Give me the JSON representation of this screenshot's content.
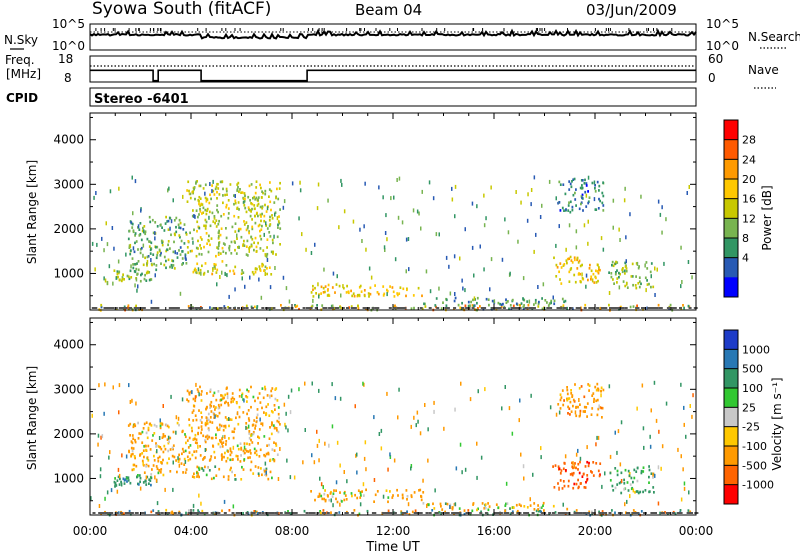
{
  "header": {
    "title": "Syowa South (fitACF)",
    "beam": "Beam 04",
    "date": "03/Jun/2009"
  },
  "top_panels": {
    "nsky": {
      "label": "N.Sky",
      "ticks": [
        "10^5",
        "10^0"
      ],
      "right_ticks": [
        "10^5",
        "10^0"
      ],
      "right_label": "N.Search"
    },
    "freq": {
      "label_line1": "Freq.",
      "label_line2": "[MHz]",
      "ticks": [
        "18",
        "8"
      ],
      "right_ticks": [
        "60",
        "0"
      ],
      "right_label": "Nave"
    },
    "cpid": {
      "label": "CPID",
      "value": "Stereo -6401"
    }
  },
  "power_panel": {
    "ylabel": "Slant Range [km]",
    "yticks": [
      "4000",
      "3000",
      "2000",
      "1000"
    ],
    "colorbar": {
      "label": "Power [dB]",
      "ticks": [
        "28",
        "24",
        "20",
        "16",
        "12",
        "8",
        "4"
      ],
      "colors": [
        "#ff0000",
        "#ff5a00",
        "#ff9a00",
        "#ffc800",
        "#c8c800",
        "#78b450",
        "#329664",
        "#285ab4",
        "#0000ff"
      ]
    }
  },
  "velocity_panel": {
    "ylabel": "Slant Range [km]",
    "yticks": [
      "4000",
      "3000",
      "2000",
      "1000"
    ],
    "colorbar": {
      "label": "Velocity [m s⁻¹]",
      "ticks": [
        "1000",
        "500",
        "100",
        "25",
        "-25",
        "-100",
        "-500",
        "-1000"
      ],
      "colors": [
        "#1e3cc8",
        "#2878b4",
        "#329664",
        "#32c832",
        "#c8c8c8",
        "#ffc800",
        "#ff9a00",
        "#ff6400",
        "#ff0000"
      ]
    }
  },
  "xaxis": {
    "label": "Time UT",
    "ticks": [
      "00:00",
      "04:00",
      "08:00",
      "12:00",
      "16:00",
      "20:00",
      "00:00"
    ]
  },
  "chart_data": {
    "type": "heatmap",
    "title": "Syowa South (fitACF)",
    "subtitle": "Beam 04",
    "date": "03/Jun/2009",
    "xlabel": "Time UT",
    "ylabel": "Slant Range [km]",
    "xlim_hours": [
      0,
      24
    ],
    "ylim_km": [
      180,
      4600
    ],
    "freq_mhz_segments": [
      {
        "start_h": 0.0,
        "end_h": 2.5,
        "value": 12.5
      },
      {
        "start_h": 2.5,
        "end_h": 2.7,
        "value": 8.5
      },
      {
        "start_h": 2.7,
        "end_h": 4.4,
        "value": 12.5
      },
      {
        "start_h": 4.4,
        "end_h": 8.6,
        "value": 8.5
      },
      {
        "start_h": 8.6,
        "end_h": 24.0,
        "value": 12.5
      }
    ],
    "nsky_level": "near 10^5 throughout",
    "scatter_regions": [
      {
        "t0": 0.3,
        "t1": 24.0,
        "r0": 200,
        "r1": 320,
        "power": "mixed",
        "velocity": "mixed"
      },
      {
        "t0": 0.9,
        "t1": 2.4,
        "r0": 850,
        "r1": 1100,
        "power": 12,
        "velocity": 300
      },
      {
        "t0": 1.5,
        "t1": 3.8,
        "r0": 1100,
        "r1": 2300,
        "power": 10,
        "velocity": -200
      },
      {
        "t0": 4.0,
        "t1": 7.2,
        "r0": 1000,
        "r1": 1300,
        "power": 16,
        "velocity": -100
      },
      {
        "t0": 3.8,
        "t1": 7.5,
        "r0": 1400,
        "r1": 3100,
        "power": 14,
        "velocity": -200
      },
      {
        "t0": 8.7,
        "t1": 13.2,
        "r0": 500,
        "r1": 780,
        "power": 18,
        "velocity": -150
      },
      {
        "t0": 13.0,
        "t1": 19.0,
        "r0": 300,
        "r1": 480,
        "power": 8,
        "velocity": -100
      },
      {
        "t0": 18.3,
        "t1": 20.2,
        "r0": 800,
        "r1": 1400,
        "power": 18,
        "velocity": -900
      },
      {
        "t0": 18.5,
        "t1": 20.3,
        "r0": 2400,
        "r1": 3150,
        "power": 6,
        "velocity": -300
      },
      {
        "t0": 20.5,
        "t1": 22.3,
        "r0": 700,
        "r1": 1300,
        "power": 12,
        "velocity": 200
      }
    ]
  }
}
